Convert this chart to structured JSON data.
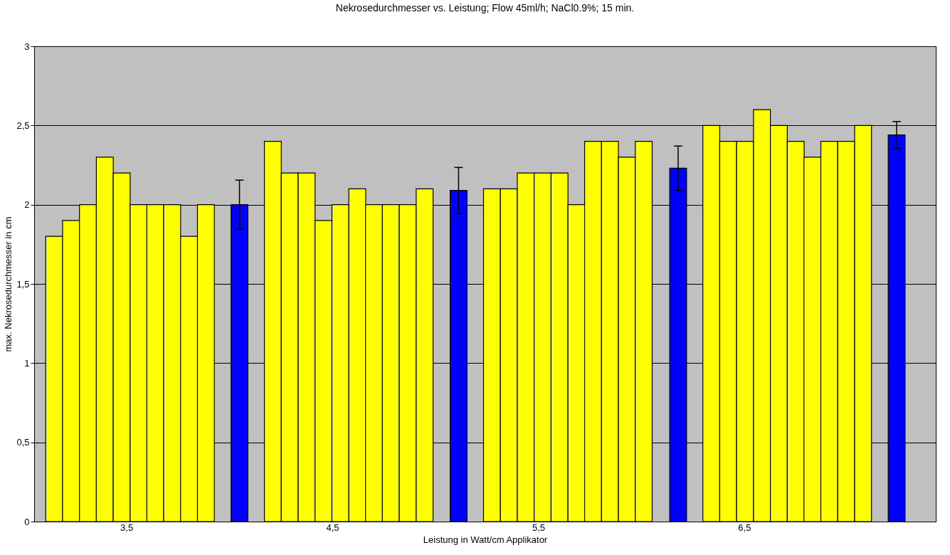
{
  "chart_data": {
    "type": "bar",
    "title": "Nekrosedurchmesser vs. Leistung; Flow 45ml/h; NaCl0.9%; 15 min.",
    "xlabel": "Leistung in Watt/cm Applikator",
    "ylabel": "max. Nekrosedurchmesser in cm",
    "series": [
      {
        "color": "#ffff00",
        "x": [
          3.149,
          3.231,
          3.313,
          3.395,
          3.477,
          3.559,
          3.64,
          3.722,
          3.804,
          3.886,
          4.211,
          4.293,
          4.375,
          4.457,
          4.539,
          4.621,
          4.702,
          4.784,
          4.866,
          4.948,
          5.275,
          5.357,
          5.439,
          5.521,
          5.603,
          5.685,
          5.766,
          5.848,
          5.93,
          6.012,
          6.34,
          6.422,
          6.504,
          6.586,
          6.668,
          6.75,
          6.831,
          6.913,
          6.995,
          7.077
        ],
        "values": [
          1.8,
          1.9,
          2.0,
          2.3,
          2.2,
          2.0,
          2.0,
          2.0,
          1.8,
          2.0,
          2.4,
          2.2,
          2.2,
          1.9,
          2.0,
          2.1,
          2.0,
          2.0,
          2.0,
          2.1,
          2.1,
          2.1,
          2.2,
          2.2,
          2.2,
          2.0,
          2.4,
          2.4,
          2.3,
          2.4,
          2.5,
          2.4,
          2.4,
          2.6,
          2.5,
          2.4,
          2.3,
          2.4,
          2.4,
          2.5
        ]
      },
      {
        "color": "#0000ff",
        "x": [
          4.049,
          5.113,
          6.179,
          7.24
        ],
        "values": [
          2.0,
          2.09,
          2.23,
          2.44
        ],
        "errors": [
          0.155,
          0.145,
          0.14,
          0.085
        ]
      }
    ],
    "xlim": [
      3.052,
      7.43
    ],
    "xticks": [
      {
        "value": 3.5,
        "label": "3,5"
      },
      {
        "value": 4.5,
        "label": "4,5"
      },
      {
        "value": 5.5,
        "label": "5,5"
      },
      {
        "value": 6.5,
        "label": "6,5"
      }
    ],
    "ylim": [
      0,
      3
    ],
    "yticks": [
      0,
      {
        "value": 0.5,
        "label": "0,5"
      },
      1,
      {
        "value": 1.5,
        "label": "1,5"
      },
      2,
      {
        "value": 2.5,
        "label": "2,5"
      },
      3
    ],
    "grid": "y"
  }
}
